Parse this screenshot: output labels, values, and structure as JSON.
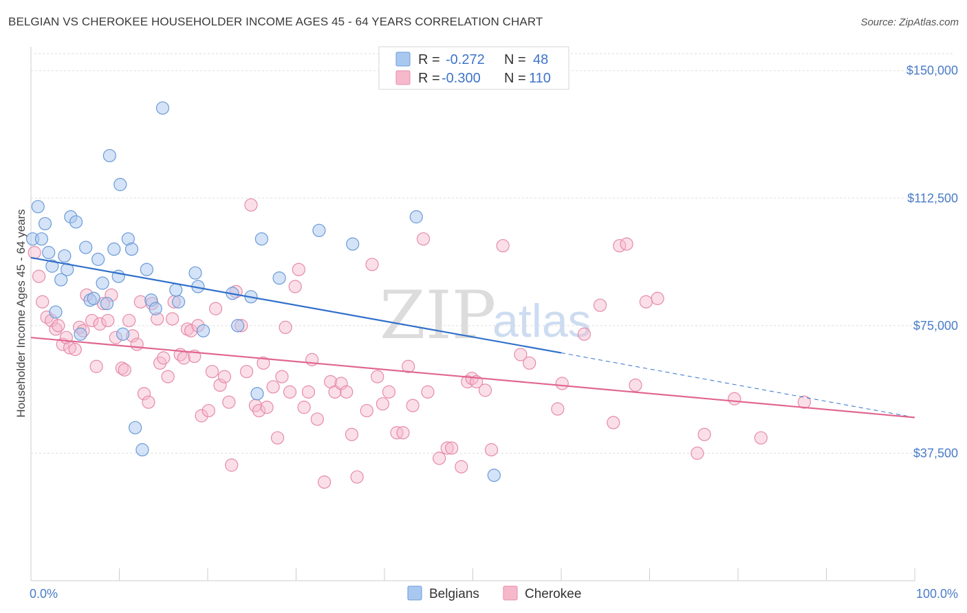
{
  "title": "BELGIAN VS CHEROKEE HOUSEHOLDER INCOME AGES 45 - 64 YEARS CORRELATION CHART",
  "source": "Source: ZipAtlas.com",
  "watermark": {
    "zip": "ZIP",
    "atlas": "atlas"
  },
  "colors": {
    "belgian_fill": "#a9c8f0",
    "belgian_stroke": "#6a9ad6",
    "belgian_line": "#2f6fca",
    "cherokee_fill": "#f6b9cc",
    "cherokee_stroke": "#e58aa8",
    "cherokee_line": "#e0668f",
    "grid": "#dddddd",
    "tick_text": "#4a7cc7"
  },
  "legend": {
    "rows": [
      {
        "r_label": "R =",
        "r_value": "-0.272",
        "n_label": "N =",
        "n_value": "48"
      },
      {
        "r_label": "R =",
        "r_value": "-0.300",
        "n_label": "N =",
        "n_value": "110"
      }
    ]
  },
  "bottom_legend": {
    "belgians": "Belgians",
    "cherokee": "Cherokee"
  },
  "chart_data": {
    "type": "scatter",
    "title": "BELGIAN VS CHEROKEE HOUSEHOLDER INCOME AGES 45 - 64 YEARS CORRELATION CHART",
    "xlabel": "",
    "ylabel": "Householder Income Ages 45 - 64 years",
    "xlim": [
      0,
      100
    ],
    "ylim": [
      0,
      155000
    ],
    "x_tick_labels": [
      "0.0%",
      "100.0%"
    ],
    "y_ticks": [
      37500,
      75000,
      112500,
      150000
    ],
    "y_tick_labels": [
      "$37,500",
      "$75,000",
      "$112,500",
      "$150,000"
    ],
    "grid": true,
    "legend_position": "top-center",
    "series": [
      {
        "name": "Belgians",
        "trend": {
          "x": [
            0,
            60
          ],
          "y": [
            95000,
            67000
          ],
          "dashed_extension_to": [
            100,
            48000
          ]
        },
        "points": [
          [
            0.2,
            100500
          ],
          [
            0.8,
            110000
          ],
          [
            1.2,
            100500
          ],
          [
            1.6,
            105000
          ],
          [
            2.0,
            96500
          ],
          [
            2.4,
            92500
          ],
          [
            2.8,
            79000
          ],
          [
            3.4,
            88500
          ],
          [
            3.8,
            95500
          ],
          [
            4.1,
            91500
          ],
          [
            4.5,
            107000
          ],
          [
            5.1,
            105500
          ],
          [
            5.6,
            72500
          ],
          [
            6.2,
            98000
          ],
          [
            6.7,
            82500
          ],
          [
            7.1,
            83000
          ],
          [
            7.6,
            94500
          ],
          [
            8.1,
            87500
          ],
          [
            8.6,
            81500
          ],
          [
            8.9,
            125000
          ],
          [
            9.4,
            97500
          ],
          [
            9.9,
            89500
          ],
          [
            10.1,
            116500
          ],
          [
            10.4,
            72500
          ],
          [
            11.0,
            100500
          ],
          [
            11.4,
            97500
          ],
          [
            11.8,
            45000
          ],
          [
            12.6,
            38500
          ],
          [
            13.1,
            91500
          ],
          [
            13.6,
            82500
          ],
          [
            14.1,
            80000
          ],
          [
            14.9,
            139000
          ],
          [
            16.4,
            85500
          ],
          [
            16.7,
            82000
          ],
          [
            18.6,
            90500
          ],
          [
            18.9,
            86500
          ],
          [
            19.5,
            73500
          ],
          [
            22.8,
            84500
          ],
          [
            23.4,
            75000
          ],
          [
            24.9,
            83500
          ],
          [
            25.6,
            55000
          ],
          [
            26.1,
            100500
          ],
          [
            28.1,
            89000
          ],
          [
            32.6,
            103000
          ],
          [
            36.4,
            99000
          ],
          [
            43.6,
            107000
          ],
          [
            52.4,
            31000
          ]
        ]
      },
      {
        "name": "Cherokee",
        "trend": {
          "x": [
            0,
            100
          ],
          "y": [
            71500,
            48000
          ]
        },
        "points": [
          [
            0.4,
            96500
          ],
          [
            0.9,
            89500
          ],
          [
            1.3,
            82000
          ],
          [
            1.8,
            77500
          ],
          [
            2.3,
            76500
          ],
          [
            2.8,
            74000
          ],
          [
            3.1,
            75000
          ],
          [
            3.6,
            69500
          ],
          [
            4.0,
            71500
          ],
          [
            4.4,
            68500
          ],
          [
            5.0,
            68000
          ],
          [
            5.5,
            74500
          ],
          [
            5.9,
            73500
          ],
          [
            6.3,
            84000
          ],
          [
            6.9,
            76500
          ],
          [
            7.4,
            63000
          ],
          [
            7.8,
            75500
          ],
          [
            8.2,
            81500
          ],
          [
            8.7,
            76500
          ],
          [
            9.1,
            84000
          ],
          [
            9.6,
            71500
          ],
          [
            10.3,
            62500
          ],
          [
            10.6,
            62000
          ],
          [
            11.1,
            76500
          ],
          [
            11.5,
            72000
          ],
          [
            12.0,
            69500
          ],
          [
            12.4,
            82000
          ],
          [
            12.8,
            55000
          ],
          [
            13.3,
            52500
          ],
          [
            13.7,
            81500
          ],
          [
            14.3,
            77000
          ],
          [
            14.6,
            64000
          ],
          [
            15.0,
            65500
          ],
          [
            15.5,
            60000
          ],
          [
            16.0,
            77000
          ],
          [
            16.2,
            82000
          ],
          [
            16.9,
            66500
          ],
          [
            17.3,
            65500
          ],
          [
            17.7,
            74000
          ],
          [
            18.1,
            73500
          ],
          [
            18.5,
            66000
          ],
          [
            18.9,
            75000
          ],
          [
            19.3,
            48500
          ],
          [
            20.1,
            50000
          ],
          [
            20.5,
            61500
          ],
          [
            20.9,
            80000
          ],
          [
            21.4,
            57500
          ],
          [
            21.9,
            60000
          ],
          [
            22.4,
            52500
          ],
          [
            22.7,
            34000
          ],
          [
            23.2,
            85000
          ],
          [
            23.8,
            75000
          ],
          [
            24.4,
            61500
          ],
          [
            24.9,
            110500
          ],
          [
            25.4,
            51500
          ],
          [
            25.8,
            50000
          ],
          [
            26.3,
            64000
          ],
          [
            26.7,
            51000
          ],
          [
            27.4,
            57000
          ],
          [
            27.9,
            42000
          ],
          [
            28.4,
            60000
          ],
          [
            28.8,
            74500
          ],
          [
            29.3,
            55500
          ],
          [
            29.9,
            86500
          ],
          [
            30.3,
            91500
          ],
          [
            30.9,
            51000
          ],
          [
            31.4,
            55500
          ],
          [
            31.8,
            65000
          ],
          [
            32.4,
            47500
          ],
          [
            33.2,
            29000
          ],
          [
            33.9,
            58500
          ],
          [
            34.4,
            55500
          ],
          [
            35.1,
            58000
          ],
          [
            35.7,
            55500
          ],
          [
            36.3,
            43000
          ],
          [
            36.9,
            30500
          ],
          [
            38.0,
            50000
          ],
          [
            38.6,
            93000
          ],
          [
            39.2,
            60000
          ],
          [
            39.8,
            52000
          ],
          [
            40.5,
            55500
          ],
          [
            41.4,
            43500
          ],
          [
            42.1,
            43500
          ],
          [
            42.7,
            63000
          ],
          [
            43.2,
            51500
          ],
          [
            44.4,
            100500
          ],
          [
            44.9,
            55500
          ],
          [
            46.2,
            36000
          ],
          [
            47.1,
            39000
          ],
          [
            47.6,
            39000
          ],
          [
            48.7,
            33500
          ],
          [
            49.4,
            58500
          ],
          [
            49.9,
            59500
          ],
          [
            50.4,
            58500
          ],
          [
            51.4,
            56000
          ],
          [
            52.1,
            38500
          ],
          [
            53.4,
            98500
          ],
          [
            55.4,
            66500
          ],
          [
            56.4,
            64000
          ],
          [
            59.6,
            50500
          ],
          [
            60.1,
            58000
          ],
          [
            62.6,
            72500
          ],
          [
            64.4,
            81000
          ],
          [
            65.9,
            46500
          ],
          [
            66.6,
            98500
          ],
          [
            67.4,
            99000
          ],
          [
            68.4,
            57500
          ],
          [
            69.6,
            82000
          ],
          [
            70.9,
            83000
          ],
          [
            75.4,
            37500
          ],
          [
            76.2,
            43000
          ],
          [
            79.6,
            53500
          ],
          [
            82.6,
            42000
          ],
          [
            87.5,
            52500
          ]
        ]
      }
    ]
  }
}
